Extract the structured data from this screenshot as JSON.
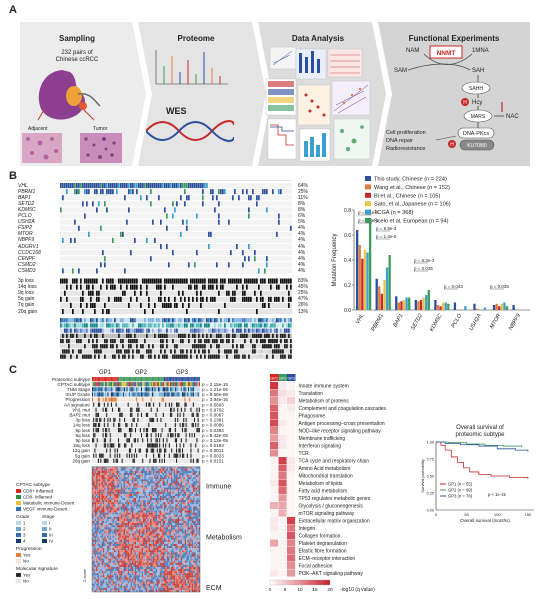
{
  "panelA": {
    "letter": "A",
    "steps": [
      {
        "title": "Sampling"
      },
      {
        "title": "Proteome"
      },
      {
        "title": "Data Analysis"
      },
      {
        "title": "Functional Experiments"
      }
    ],
    "sampling": {
      "line1": "232 pairs of",
      "line2": "Chinese ccRCC",
      "adjacent": "Adjacent",
      "tumor": "Tumor"
    },
    "wes": "WES",
    "functional": {
      "nam": "NAM",
      "nnmt": "NNMT",
      "onemna": "1MNA",
      "sam": "SAM",
      "sah": "SAH",
      "sahh": "SAHH",
      "hcy": "Hcy",
      "mars": "MARS",
      "nac": "NAC",
      "cell_prolif": "Cell proliferation",
      "dna_repair": "DNA repair",
      "radio": "Radioresistance",
      "dnapk": "DNA-PKcs",
      "ku": "KU70/80",
      "h": "H"
    }
  },
  "panelB": {
    "letter": "B",
    "genes": [
      {
        "name": "VHL",
        "pct": "64%"
      },
      {
        "name": "PBRM1",
        "pct": "25%"
      },
      {
        "name": "BAP1",
        "pct": "11%"
      },
      {
        "name": "SETD2",
        "pct": "8%"
      },
      {
        "name": "KDM5C",
        "pct": "8%"
      },
      {
        "name": "PCLO",
        "pct": "6%"
      },
      {
        "name": "USH2A",
        "pct": "5%"
      },
      {
        "name": "FSIP2",
        "pct": "4%"
      },
      {
        "name": "MTOR",
        "pct": "4%"
      },
      {
        "name": "NBPF9",
        "pct": "4%"
      },
      {
        "name": "ADGRV1",
        "pct": "4%"
      },
      {
        "name": "CCDC168",
        "pct": "4%"
      },
      {
        "name": "CENPF",
        "pct": "4%"
      },
      {
        "name": "CSMD2",
        "pct": "4%"
      },
      {
        "name": "CSMD3",
        "pct": "4%"
      }
    ],
    "cnv": [
      {
        "name": "3p loss",
        "pct": "83%"
      },
      {
        "name": "14q loss",
        "pct": "45%"
      },
      {
        "name": "9q loss",
        "pct": "25%"
      },
      {
        "name": "5q gain",
        "pct": "47%"
      },
      {
        "name": "7q gain",
        "pct": "26%"
      },
      {
        "name": "20q gain",
        "pct": "13%"
      }
    ],
    "clinical": [
      "TNM stage",
      "ISUP grade",
      "Age",
      "Gender",
      "Hypertension",
      "Diabetes",
      "Obesity",
      "AA"
    ]
  },
  "chart_data": {
    "type": "bar",
    "ylabel": "Mutation Frequency",
    "ylim": [
      0,
      0.8
    ],
    "yticks": [
      "0.0",
      "0.2",
      "0.4",
      "0.6",
      "0.8"
    ],
    "categories": [
      "VHL",
      "PBRM1",
      "BAP1",
      "SETD2",
      "KDM5C",
      "PCLO",
      "USH2A",
      "MTOR",
      "NBPF9"
    ],
    "series": [
      {
        "name": "This study, Chinese (n = 224)",
        "color": "#2b4f9e",
        "values": [
          0.64,
          0.25,
          0.11,
          0.08,
          0.08,
          0.06,
          0.05,
          0.04,
          0.04
        ]
      },
      {
        "name": "Wang et al., Chinese (n = 152)",
        "color": "#e07b39",
        "values": [
          0.52,
          0.19,
          0.06,
          0.07,
          0.04,
          0.0,
          0.01,
          0.05,
          0.0
        ]
      },
      {
        "name": "Bi et al., Chinese (n = 105)",
        "color": "#c72828",
        "values": [
          0.41,
          0.13,
          0.07,
          0.08,
          0.03,
          0.0,
          0.0,
          0.03,
          0.0
        ]
      },
      {
        "name": "Sato, et al, Japanese (n = 106)",
        "color": "#e8c547",
        "values": [
          0.48,
          0.24,
          0.08,
          0.1,
          0.06,
          0.0,
          0.0,
          0.05,
          0.0
        ]
      },
      {
        "name": "TCGA (n = 368)",
        "color": "#3aa0cf",
        "values": [
          0.46,
          0.34,
          0.1,
          0.12,
          0.06,
          0.03,
          0.02,
          0.06,
          0.0
        ]
      },
      {
        "name": "Scelo et al, European (n = 94)",
        "color": "#3a9b5c",
        "values": [
          0.73,
          0.44,
          0.1,
          0.16,
          0.05,
          0.0,
          0.0,
          0.03,
          0.0
        ]
      }
    ],
    "annotations": [
      "p = 2.1e-5",
      "p = 1.3e-3",
      "p = 9.9e-3",
      "p = 1.4e-5",
      "p = 6.3e-3",
      "p = 0.035",
      "p = 0.043",
      "p = 0.035"
    ]
  },
  "panelC": {
    "letter": "C",
    "groups": [
      "GP1",
      "GP2",
      "GP3"
    ],
    "tracks": [
      {
        "name": "Proteomic subtype",
        "p": ""
      },
      {
        "name": "CPTAC subtype",
        "p": "p = 2.15e-15"
      },
      {
        "name": "TNM Stage",
        "p": "p = 1.21e-06"
      },
      {
        "name": "ISUP Grade",
        "p": "p = 9.58e-08"
      },
      {
        "name": "Progression",
        "p": "p = 3.94e-15"
      },
      {
        "name": "AA signature",
        "p": "p = 0.5693"
      },
      {
        "name": "VHL mut",
        "p": "p = 0.9702"
      },
      {
        "name": "BAP1 mut",
        "p": "p = 0.0067"
      },
      {
        "name": "3p loss",
        "p": "p = 0.1381"
      },
      {
        "name": "14q loss",
        "p": "p = 0.0086"
      },
      {
        "name": "8p loss",
        "p": "p = 0.0384"
      },
      {
        "name": "9q loss",
        "p": "p = 5.42e-05"
      },
      {
        "name": "9p loss",
        "p": "p = 3.13e-05"
      },
      {
        "name": "18q loss",
        "p": "p = 0.0183"
      },
      {
        "name": "12q gain",
        "p": "p = 0.0011"
      },
      {
        "name": "5q gain",
        "p": "p = 0.0023"
      },
      {
        "name": "20q gain",
        "p": "p = 0.0131"
      }
    ],
    "legend": {
      "cptac_title": "CPTAC subtype",
      "cptac": [
        {
          "label": "CD8+ Inflamed",
          "color": "#d7261e"
        },
        {
          "label": "CD8- Inflamed",
          "color": "#2e8b3d"
        },
        {
          "label": "Metabolic Immune-Desert",
          "color": "#e8c23a"
        },
        {
          "label": "VEGF Immune-Desert",
          "color": "#2f6fb3"
        }
      ],
      "grade_title": "Grade",
      "stage_title": "Stage",
      "grades": [
        "1",
        "2",
        "3",
        "4"
      ],
      "stages": [
        "I",
        "II",
        "III",
        "IV"
      ],
      "progression_title": "Progression",
      "progression": [
        "Yes",
        "No"
      ],
      "molecular_title": "Molecular signature",
      "molecular": [
        "Yes",
        "No"
      ],
      "zscore": "Z-score"
    },
    "heatmap_labels": [
      "Immune",
      "Metabolism",
      "ECM"
    ],
    "pathways": [
      {
        "name": "Innate immune system",
        "v": [
          0.9,
          0.1,
          0.05
        ]
      },
      {
        "name": "Translation",
        "v": [
          0.6,
          0.15,
          0.1
        ]
      },
      {
        "name": "Metabolism of proteins",
        "v": [
          0.5,
          0.1,
          0.2
        ]
      },
      {
        "name": "Complement and coagulation cascades",
        "v": [
          0.7,
          0.05,
          0.1
        ]
      },
      {
        "name": "Phagosome",
        "v": [
          0.75,
          0.05,
          0.05
        ]
      },
      {
        "name": "Antigen processing–cross presentation",
        "v": [
          0.8,
          0.1,
          0.05
        ]
      },
      {
        "name": "NOD–like receptor signaling pathway",
        "v": [
          0.55,
          0.05,
          0.05
        ]
      },
      {
        "name": "Membrane trafficking",
        "v": [
          0.45,
          0.1,
          0.05
        ]
      },
      {
        "name": "Interferon signaling",
        "v": [
          0.7,
          0.1,
          0.05
        ]
      },
      {
        "name": "TCR",
        "v": [
          0.5,
          0.05,
          0.05
        ]
      },
      {
        "name": "TCA cycle and respiratory chain",
        "v": [
          0.05,
          0.85,
          0.1
        ]
      },
      {
        "name": "Amino Acid metabolism",
        "v": [
          0.05,
          0.7,
          0.1
        ]
      },
      {
        "name": "Mitochondrial translation",
        "v": [
          0.05,
          0.6,
          0.05
        ]
      },
      {
        "name": "Metabolism of lipids",
        "v": [
          0.1,
          0.75,
          0.05
        ]
      },
      {
        "name": "Fatty acid metabolism",
        "v": [
          0.05,
          0.65,
          0.05
        ]
      },
      {
        "name": "TP53 regulates metabolic genes",
        "v": [
          0.05,
          0.45,
          0.05
        ]
      },
      {
        "name": "Glycolysis / gluconeogenesis",
        "v": [
          0.35,
          0.4,
          0.05
        ]
      },
      {
        "name": "mTOR signaling pathway",
        "v": [
          0.05,
          0.35,
          0.05
        ]
      },
      {
        "name": "Extracellular matrix organization",
        "v": [
          0.1,
          0.05,
          0.85
        ]
      },
      {
        "name": "Integrin",
        "v": [
          0.1,
          0.05,
          0.6
        ]
      },
      {
        "name": "Collagen formation",
        "v": [
          0.05,
          0.05,
          0.75
        ]
      },
      {
        "name": "Platelet degranulation",
        "v": [
          0.4,
          0.05,
          0.55
        ]
      },
      {
        "name": "Elastic fibre formation",
        "v": [
          0.05,
          0.05,
          0.6
        ]
      },
      {
        "name": "ECM–receptor interaction",
        "v": [
          0.05,
          0.05,
          0.65
        ]
      },
      {
        "name": "Focal adhesion",
        "v": [
          0.05,
          0.05,
          0.5
        ]
      },
      {
        "name": "PI3K–AKT signaling pathway",
        "v": [
          0.1,
          0.05,
          0.45
        ]
      }
    ],
    "scale_ticks": [
      "0",
      "5",
      "10",
      "15",
      "20"
    ],
    "scale_label": "-log10 (q value)",
    "survival": {
      "title1": "Overall survival of",
      "title2": "proteomic subtype",
      "ylabel": "Survival probability",
      "xlabel": "Overall survival (months)",
      "xticks": [
        "0",
        "50",
        "100",
        "150"
      ],
      "yticks": [
        "0.00",
        "0.25",
        "0.50",
        "0.75",
        "1.00"
      ],
      "legend": [
        {
          "label": "GP1 (n = 55)",
          "color": "#c72828"
        },
        {
          "label": "GP2 (n = 99)",
          "color": "#3a9b5c"
        },
        {
          "label": "GP3 (n = 78)",
          "color": "#2b4f9e"
        }
      ],
      "pval": "p < 1e-15"
    }
  }
}
